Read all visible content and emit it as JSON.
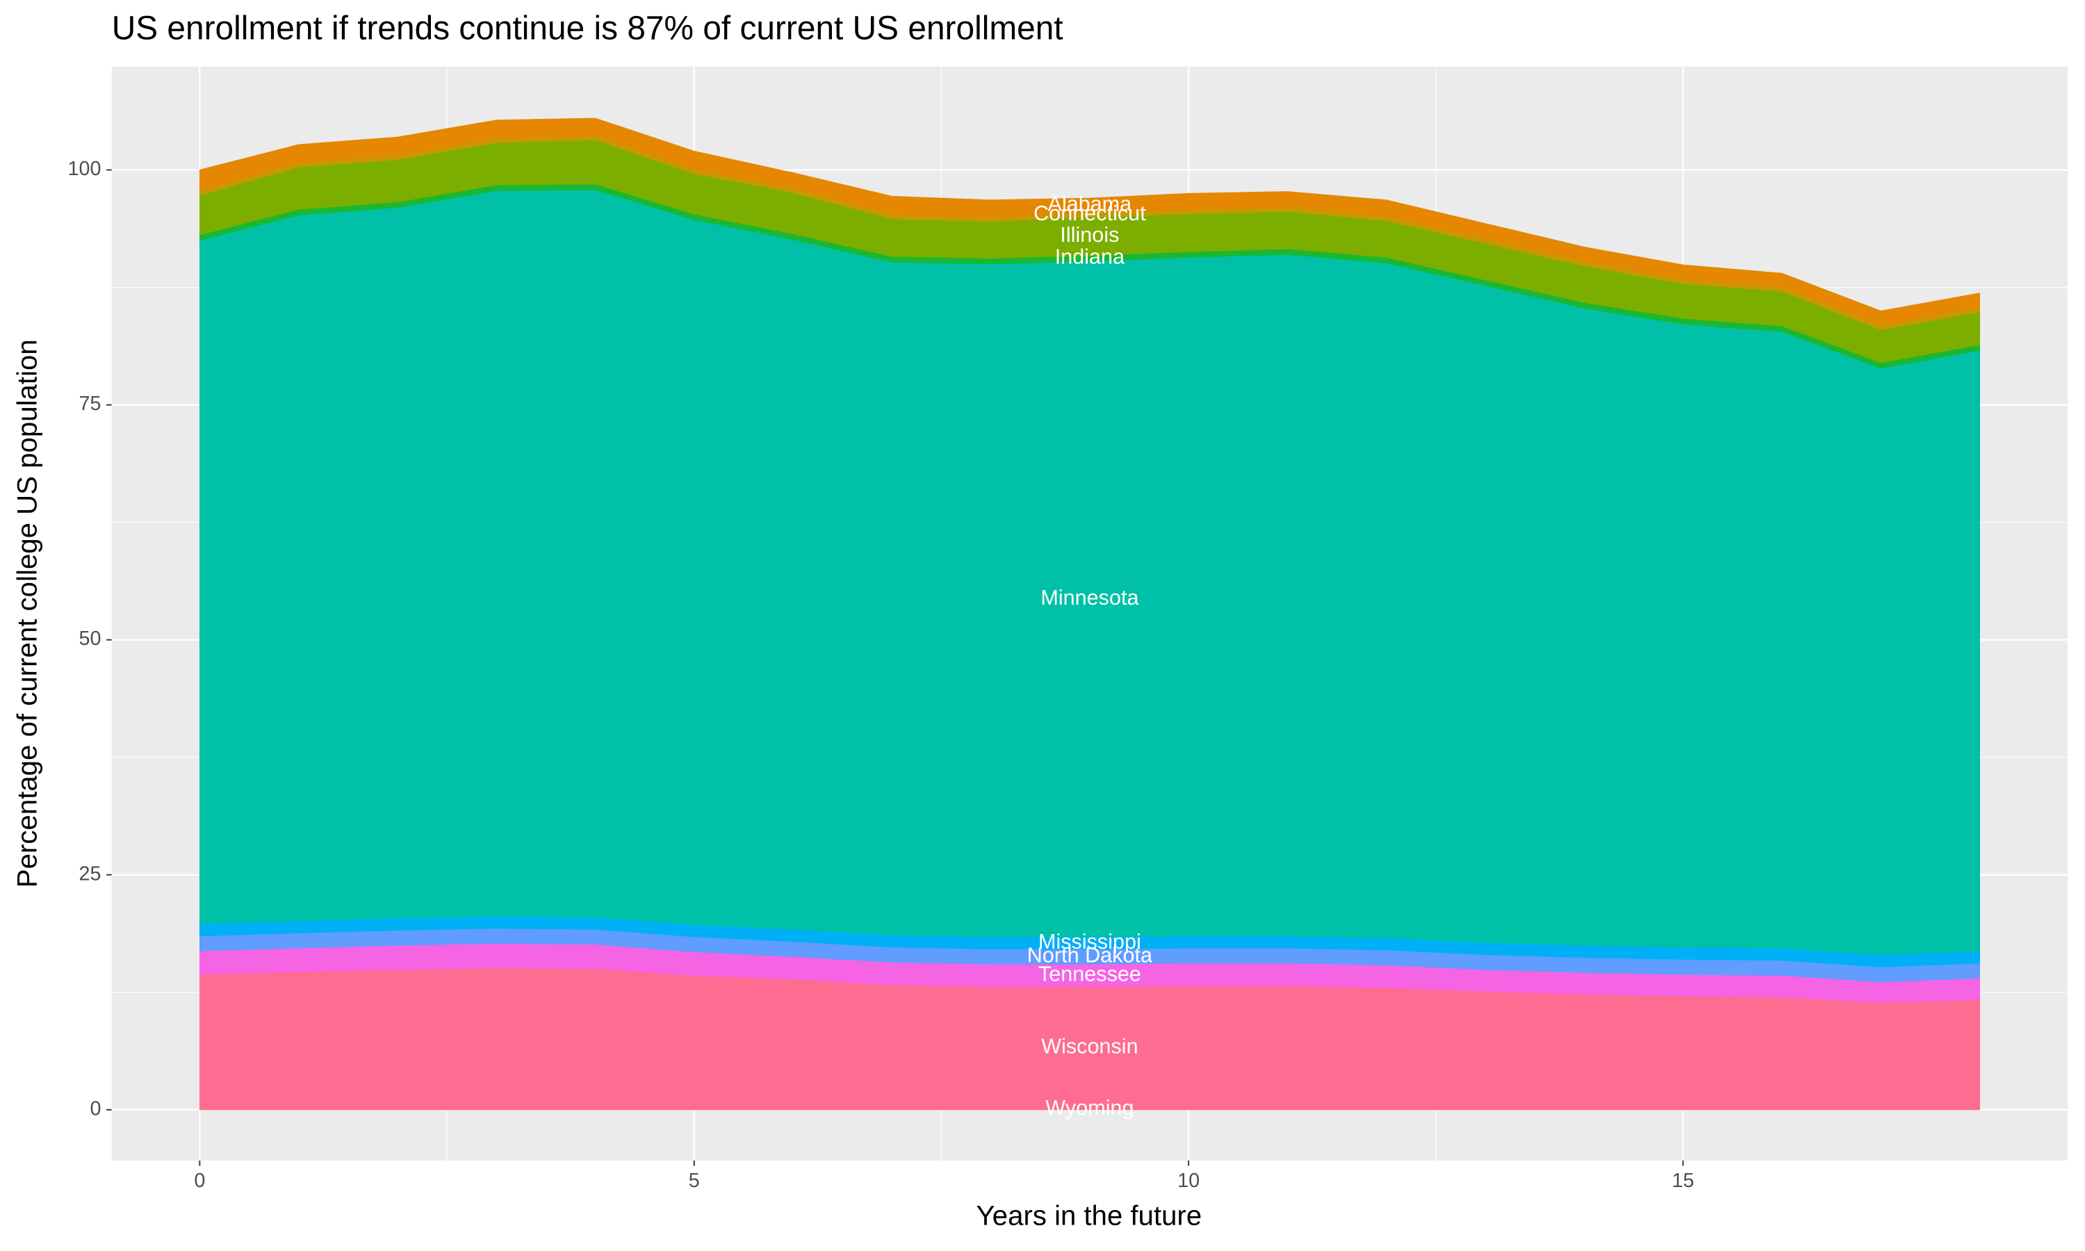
{
  "chart_data": {
    "type": "area",
    "stacked": true,
    "title": "US enrollment if trends continue is 87% of current US enrollment",
    "x_label": "Years in the future",
    "y_label": "Percentage of current college US population",
    "x": [
      0,
      1,
      2,
      3,
      4,
      5,
      6,
      7,
      8,
      9,
      10,
      11,
      12,
      13,
      14,
      15,
      16,
      17,
      18
    ],
    "xlim": [
      -0.89,
      18.89
    ],
    "xticks": [
      0,
      5,
      10,
      15
    ],
    "ylim": [
      -5.4,
      111
    ],
    "yticks": [
      0,
      25,
      50,
      75,
      100
    ],
    "grid": true,
    "series": [
      {
        "name": "Wyoming",
        "color": "#f8766d",
        "values": [
          0.1,
          0.1,
          0.1,
          0.1,
          0.1,
          0.1,
          0.1,
          0.1,
          0.1,
          0.1,
          0.1,
          0.1,
          0.1,
          0.1,
          0.1,
          0.1,
          0.1,
          0.1,
          0.1
        ]
      },
      {
        "name": "Wisconsin",
        "color": "#ff6c91",
        "values": [
          14.3,
          14.6,
          14.8,
          15.0,
          14.9,
          14.2,
          13.8,
          13.2,
          13.0,
          13.0,
          13.1,
          13.1,
          12.9,
          12.5,
          12.2,
          12.0,
          11.9,
          11.3,
          11.6
        ]
      },
      {
        "name": "Tennessee",
        "color": "#f564e3",
        "values": [
          2.5,
          2.5,
          2.6,
          2.6,
          2.6,
          2.5,
          2.4,
          2.4,
          2.4,
          2.4,
          2.4,
          2.4,
          2.4,
          2.3,
          2.3,
          2.3,
          2.3,
          2.2,
          2.3
        ]
      },
      {
        "name": "North Dakota",
        "color": "#619cff",
        "values": [
          1.6,
          1.6,
          1.6,
          1.6,
          1.6,
          1.6,
          1.6,
          1.6,
          1.6,
          1.6,
          1.6,
          1.6,
          1.6,
          1.6,
          1.6,
          1.6,
          1.6,
          1.6,
          1.6
        ]
      },
      {
        "name": "Mississippi",
        "color": "#00b0f6",
        "values": [
          1.3,
          1.3,
          1.3,
          1.3,
          1.3,
          1.3,
          1.3,
          1.3,
          1.3,
          1.3,
          1.3,
          1.3,
          1.3,
          1.3,
          1.3,
          1.3,
          1.3,
          1.3,
          1.3
        ]
      },
      {
        "name": "Minnesota",
        "color": "#00c1a7",
        "values": [
          72.7,
          75.1,
          75.6,
          77.2,
          77.4,
          75.0,
          73.4,
          71.6,
          71.6,
          71.9,
          72.2,
          72.5,
          71.8,
          69.9,
          67.8,
          66.3,
          65.6,
          62.4,
          63.9
        ]
      },
      {
        "name": "Indiana",
        "color": "#1ab732",
        "values": [
          0.6,
          0.6,
          0.6,
          0.6,
          0.6,
          0.6,
          0.6,
          0.6,
          0.6,
          0.6,
          0.6,
          0.6,
          0.6,
          0.6,
          0.6,
          0.6,
          0.6,
          0.6,
          0.6
        ]
      },
      {
        "name": "Illinois",
        "color": "#7cae00",
        "values": [
          4.2,
          4.5,
          4.5,
          4.5,
          4.7,
          4.3,
          4.4,
          4.0,
          3.9,
          4.1,
          4.0,
          4.0,
          3.9,
          3.9,
          3.9,
          3.7,
          3.7,
          3.5,
          3.5
        ]
      },
      {
        "name": "Connecticut",
        "color": "#c99800",
        "values": [
          0.5,
          0.5,
          0.5,
          0.5,
          0.5,
          0.5,
          0.5,
          0.5,
          0.5,
          0.5,
          0.5,
          0.5,
          0.5,
          0.5,
          0.5,
          0.5,
          0.5,
          0.5,
          0.5
        ]
      },
      {
        "name": "Alabama",
        "color": "#e58700",
        "values": [
          2.2,
          1.9,
          1.9,
          1.9,
          1.8,
          1.9,
          1.6,
          1.9,
          1.8,
          1.5,
          1.7,
          1.6,
          1.7,
          1.6,
          1.5,
          1.5,
          1.4,
          1.5,
          1.5
        ]
      }
    ]
  }
}
